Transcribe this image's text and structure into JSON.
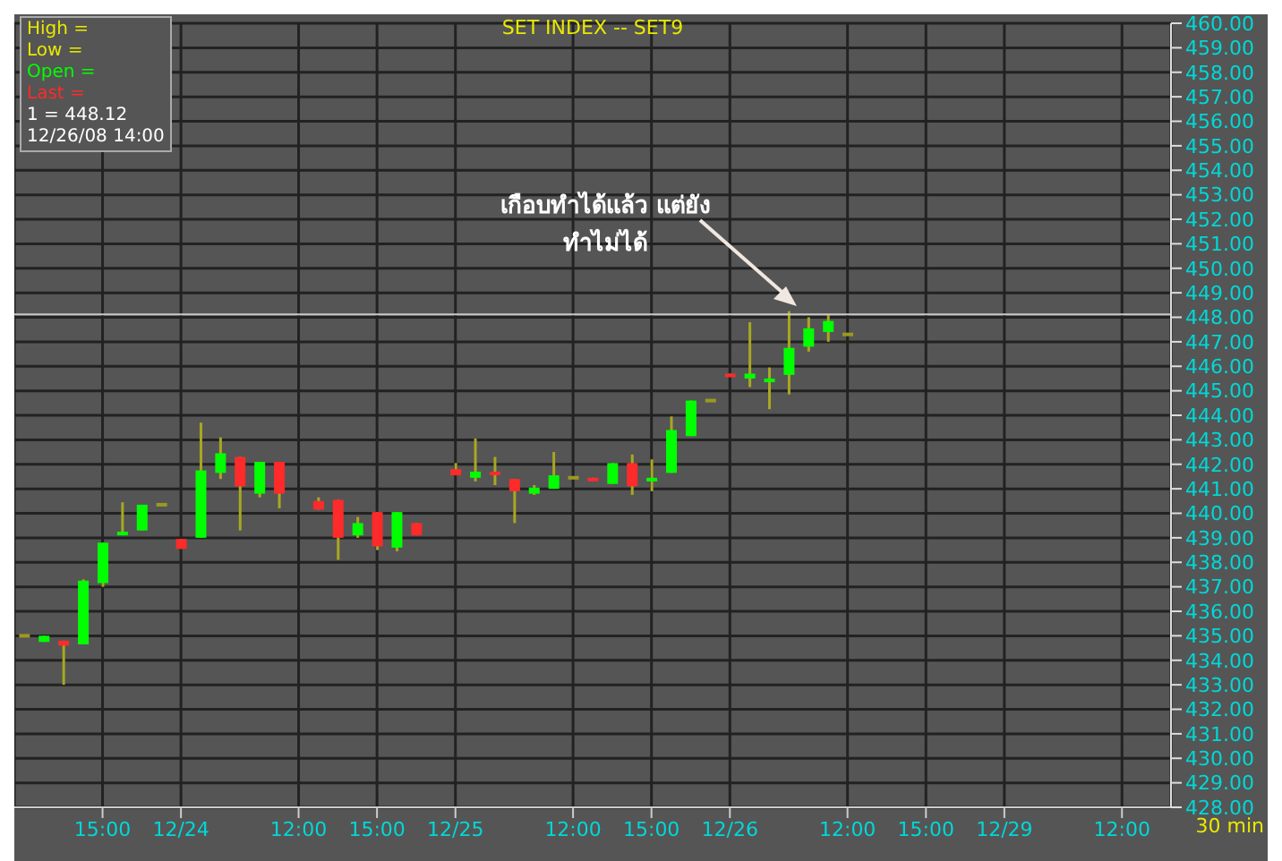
{
  "chart_data": {
    "type": "candlestick",
    "title": "SET INDEX -- SET9",
    "categories": [
      null,
      null,
      null,
      null,
      "15:00",
      null,
      null,
      null,
      "12/24",
      null,
      null,
      null,
      null,
      null,
      "12:00",
      null,
      null,
      null,
      "15:00",
      null,
      null,
      null,
      "12/25",
      null,
      null,
      null,
      null,
      null,
      "12:00",
      null,
      null,
      null,
      "15:00",
      null,
      null,
      null,
      "12/26",
      null,
      null,
      null,
      null,
      null,
      "12:00",
      null,
      null,
      null,
      "15:00",
      null,
      null,
      null,
      "12/29",
      null,
      null,
      null,
      null,
      null,
      "12:00",
      null,
      null
    ],
    "ohlc": [
      [
        435.0,
        435.0,
        435.0,
        435.0
      ],
      [
        434.75,
        435.0,
        434.75,
        435.0
      ],
      [
        434.8,
        434.8,
        433.0,
        434.6
      ],
      [
        434.65,
        437.3,
        434.65,
        437.25
      ],
      [
        437.15,
        438.8,
        437.0,
        438.8
      ],
      [
        439.1,
        440.45,
        439.1,
        439.25
      ],
      [
        439.3,
        440.35,
        439.3,
        440.35
      ],
      [
        440.35,
        440.35,
        440.35,
        440.35
      ],
      [
        438.95,
        438.95,
        438.55,
        438.55
      ],
      [
        439.0,
        443.7,
        439.0,
        441.75
      ],
      [
        441.65,
        443.1,
        441.4,
        442.45
      ],
      [
        442.3,
        442.3,
        439.3,
        441.1
      ],
      [
        440.8,
        442.1,
        440.65,
        442.1
      ],
      [
        442.1,
        442.1,
        440.2,
        440.8
      ],
      null,
      [
        440.5,
        440.65,
        440.15,
        440.15
      ],
      [
        440.55,
        440.55,
        438.1,
        439.0
      ],
      [
        439.1,
        439.85,
        439.0,
        439.6
      ],
      [
        440.05,
        440.05,
        438.5,
        438.65
      ],
      [
        438.6,
        440.05,
        438.45,
        440.05
      ],
      [
        439.6,
        439.6,
        439.1,
        439.1
      ],
      null,
      [
        441.8,
        442.05,
        441.55,
        441.55
      ],
      [
        441.45,
        443.05,
        441.3,
        441.7
      ],
      [
        441.7,
        442.3,
        441.15,
        441.6
      ],
      [
        441.4,
        441.4,
        439.6,
        440.9
      ],
      [
        440.8,
        441.15,
        440.75,
        441.05
      ],
      [
        441.0,
        442.5,
        441.0,
        441.55
      ],
      [
        441.45,
        441.45,
        441.45,
        441.45
      ],
      [
        441.45,
        441.45,
        441.35,
        441.35
      ],
      [
        441.2,
        442.05,
        441.2,
        442.05
      ],
      [
        442.05,
        442.4,
        440.75,
        441.1
      ],
      [
        441.3,
        442.2,
        440.9,
        441.45
      ],
      [
        441.65,
        443.95,
        441.65,
        443.4
      ],
      [
        443.15,
        444.6,
        443.15,
        444.6
      ],
      [
        444.6,
        444.6,
        444.6,
        444.6
      ],
      [
        445.7,
        445.7,
        445.6,
        445.6
      ],
      [
        445.5,
        447.8,
        445.15,
        445.7
      ],
      [
        445.35,
        445.95,
        444.25,
        445.5
      ],
      [
        445.65,
        448.25,
        444.85,
        446.75
      ],
      [
        446.8,
        448.0,
        446.6,
        447.55
      ],
      [
        447.4,
        448.1,
        447.0,
        447.85
      ],
      [
        447.3,
        447.3,
        447.3,
        447.3
      ],
      null,
      null,
      null,
      null,
      null,
      null,
      null,
      null,
      null,
      null,
      null,
      null,
      null,
      null,
      null,
      null
    ],
    "colors": [
      "#9a9a20",
      "#00ff00",
      "#ff2a2a",
      "#00ff00",
      "#00ff00",
      "#00ff00",
      "#00ff00",
      "#9a9a20",
      "#ff2a2a",
      "#00ff00",
      "#00ff00",
      "#ff2a2a",
      "#00ff00",
      "#ff2a2a",
      null,
      "#ff2a2a",
      "#ff2a2a",
      "#00ff00",
      "#ff2a2a",
      "#00ff00",
      "#ff2a2a",
      null,
      "#ff2a2a",
      "#00ff00",
      "#ff2a2a",
      "#ff2a2a",
      "#00ff00",
      "#00ff00",
      "#9a9a20",
      "#ff2a2a",
      "#00ff00",
      "#ff2a2a",
      "#00ff00",
      "#00ff00",
      "#00ff00",
      "#9a9a20",
      "#ff2a2a",
      "#00ff00",
      "#00ff00",
      "#00ff00",
      "#00ff00",
      "#00ff00",
      "#9a9a20",
      null,
      null,
      null,
      null,
      null,
      null,
      null,
      null,
      null,
      null,
      null,
      null,
      null,
      null,
      null,
      null
    ],
    "ylim": [
      428,
      460
    ],
    "yticks": [
      {
        "value": 428,
        "label": "428.00"
      },
      {
        "value": 429,
        "label": "429.00"
      },
      {
        "value": 430,
        "label": "430.00"
      },
      {
        "value": 431,
        "label": "431.00"
      },
      {
        "value": 432,
        "label": "432.00"
      },
      {
        "value": 433,
        "label": "433.00"
      },
      {
        "value": 434,
        "label": "434.00"
      },
      {
        "value": 435,
        "label": "435.00"
      },
      {
        "value": 436,
        "label": "436.00"
      },
      {
        "value": 437,
        "label": "437.00"
      },
      {
        "value": 438,
        "label": "438.00"
      },
      {
        "value": 439,
        "label": "439.00"
      },
      {
        "value": 440,
        "label": "440.00"
      },
      {
        "value": 441,
        "label": "441.00"
      },
      {
        "value": 442,
        "label": "442.00"
      },
      {
        "value": 443,
        "label": "443.00"
      },
      {
        "value": 444,
        "label": "444.00"
      },
      {
        "value": 445,
        "label": "445.00"
      },
      {
        "value": 446,
        "label": "446.00"
      },
      {
        "value": 447,
        "label": "447.00"
      },
      {
        "value": 448,
        "label": "448.00"
      },
      {
        "value": 449,
        "label": "449.00"
      },
      {
        "value": 450,
        "label": "450.00"
      },
      {
        "value": 451,
        "label": "451.00"
      },
      {
        "value": 452,
        "label": "452.00"
      },
      {
        "value": 453,
        "label": "453.00"
      },
      {
        "value": 454,
        "label": "454.00"
      },
      {
        "value": 455,
        "label": "455.00"
      },
      {
        "value": 456,
        "label": "456.00"
      },
      {
        "value": 457,
        "label": "457.00"
      },
      {
        "value": 458,
        "label": "458.00"
      },
      {
        "value": 459,
        "label": "459.00"
      },
      {
        "value": 460,
        "label": "460.00"
      }
    ],
    "grid": true,
    "ref_lines": [
      {
        "axis": "y",
        "value": 448.12,
        "color": "#c8c8c8"
      }
    ],
    "annotations": [
      "High =",
      "Low =",
      "Open =",
      "Last =",
      "1 = 448.12",
      "12/26/08 14:00",
      "เกือบทำได้แล้ว แต่ยัง\nทำไม่ได้",
      "30 min"
    ]
  }
}
